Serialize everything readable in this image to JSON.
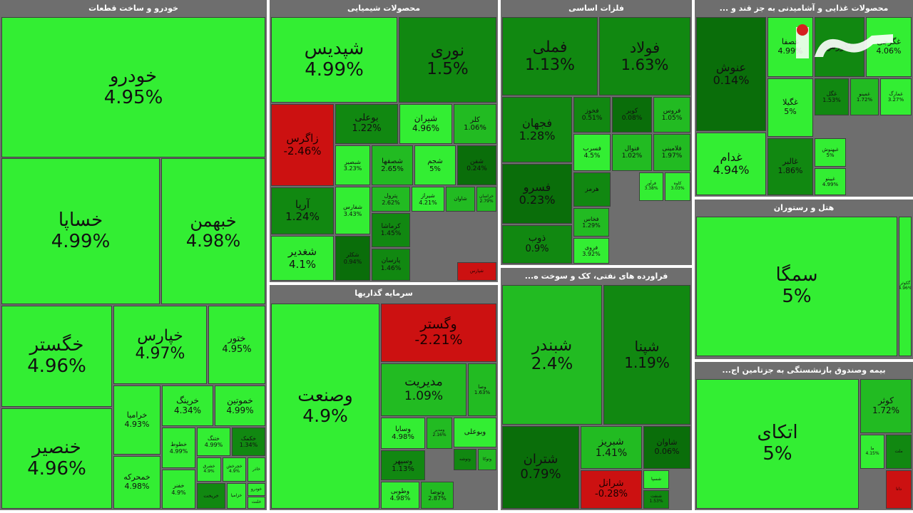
{
  "colors": {
    "bright": "#33ee33",
    "mid": "#22bb22",
    "dark": "#118811",
    "darker": "#0a6e0a",
    "red": "#cc1111",
    "header": "#6e6e6e"
  },
  "chart_data": {
    "type": "treemap",
    "panels": [
      {
        "title": "خودرو و ساخت قطعات",
        "tiles": [
          {
            "name": "خودرو",
            "value": "4.95%",
            "tone": "bright"
          },
          {
            "name": "خساپا",
            "value": "4.99%",
            "tone": "bright"
          },
          {
            "name": "خبهمن",
            "value": "4.98%",
            "tone": "bright"
          },
          {
            "name": "خگستر",
            "value": "4.96%",
            "tone": "bright"
          },
          {
            "name": "خپارس",
            "value": "4.97%",
            "tone": "bright"
          },
          {
            "name": "ختور",
            "value": "4.95%",
            "tone": "bright"
          },
          {
            "name": "خنصیر",
            "value": "4.96%",
            "tone": "bright"
          },
          {
            "name": "خرامیا",
            "value": "4.93%",
            "tone": "bright"
          },
          {
            "name": "خرینگ",
            "value": "4.34%",
            "tone": "bright"
          },
          {
            "name": "خموتین",
            "value": "4.99%",
            "tone": "bright"
          },
          {
            "name": "خمحرکه",
            "value": "4.98%",
            "tone": "bright"
          },
          {
            "name": "خطوط",
            "value": "4.99%",
            "tone": "bright"
          },
          {
            "name": "خفنر",
            "value": "4.9%",
            "tone": "bright"
          },
          {
            "name": "ختنگ",
            "value": "4.99%",
            "tone": "bright"
          },
          {
            "name": "خکمک",
            "value": "1.34%",
            "tone": "dark"
          },
          {
            "name": "خشرق",
            "value": "4.9%",
            "tone": "bright"
          },
          {
            "name": "خچرخش",
            "value": "4.9%",
            "tone": "bright"
          },
          {
            "name": "خاذر",
            "value": "",
            "tone": "bright"
          },
          {
            "name": "خریخت",
            "value": "",
            "tone": "dark"
          },
          {
            "name": "خزامیا",
            "value": "",
            "tone": "bright"
          },
          {
            "name": "خودرو",
            "value": "",
            "tone": "bright"
          },
          {
            "name": "خلنت",
            "value": "",
            "tone": "bright"
          }
        ]
      },
      {
        "title": "محصولات شیمیایی",
        "tiles": [
          {
            "name": "شپدیس",
            "value": "4.99%",
            "tone": "bright"
          },
          {
            "name": "نوری",
            "value": "1.5%",
            "tone": "dark"
          },
          {
            "name": "زاگرس",
            "value": "-2.46%",
            "tone": "red"
          },
          {
            "name": "بوعلی",
            "value": "1.22%",
            "tone": "dark"
          },
          {
            "name": "شیران",
            "value": "4.96%",
            "tone": "bright"
          },
          {
            "name": "کلر",
            "value": "1.06%",
            "tone": "mid"
          },
          {
            "name": "شصفها",
            "value": "2.65%",
            "tone": "mid"
          },
          {
            "name": "شجم",
            "value": "5%",
            "tone": "bright"
          },
          {
            "name": "شفن",
            "value": "0.24%",
            "tone": "darker"
          },
          {
            "name": "شبصیر",
            "value": "3.23%",
            "tone": "bright"
          },
          {
            "name": "آریا",
            "value": "1.24%",
            "tone": "dark"
          },
          {
            "name": "شفارس",
            "value": "3.43%",
            "tone": "bright"
          },
          {
            "name": "پترول",
            "value": "2.62%",
            "tone": "mid"
          },
          {
            "name": "شیراز",
            "value": "4.21%",
            "tone": "bright"
          },
          {
            "name": "شاوان",
            "value": "",
            "tone": "mid"
          },
          {
            "name": "خراسان",
            "value": "2.79%",
            "tone": "mid"
          },
          {
            "name": "شغدیر",
            "value": "4.1%",
            "tone": "bright"
          },
          {
            "name": "کرماشا",
            "value": "1.45%",
            "tone": "dark"
          },
          {
            "name": "شکلر",
            "value": "0.94%",
            "tone": "darker"
          },
          {
            "name": "پارسان",
            "value": "1.46%",
            "tone": "dark"
          },
          {
            "name": "شپارس",
            "value": "",
            "tone": "red"
          }
        ]
      },
      {
        "title": "فلزات اساسی",
        "tiles": [
          {
            "name": "فملی",
            "value": "1.13%",
            "tone": "dark"
          },
          {
            "name": "فولاد",
            "value": "1.63%",
            "tone": "dark"
          },
          {
            "name": "فجهان",
            "value": "1.28%",
            "tone": "dark"
          },
          {
            "name": "فخوز",
            "value": "0.51%",
            "tone": "dark"
          },
          {
            "name": "کویر",
            "value": "0.08%",
            "tone": "darker"
          },
          {
            "name": "فروس",
            "value": "1.05%",
            "tone": "mid"
          },
          {
            "name": "فسرب",
            "value": "4.5%",
            "tone": "bright"
          },
          {
            "name": "فنوال",
            "value": "1.02%",
            "tone": "mid"
          },
          {
            "name": "فلامینی",
            "value": "1.97%",
            "tone": "mid"
          },
          {
            "name": "فسرو",
            "value": "0.23%",
            "tone": "darker"
          },
          {
            "name": "ذوب",
            "value": "0.9%",
            "tone": "dark"
          },
          {
            "name": "هرمز",
            "value": "",
            "tone": "dark"
          },
          {
            "name": "فرآور",
            "value": "3.38%",
            "tone": "bright"
          },
          {
            "name": "کاوه",
            "value": "3.03%",
            "tone": "bright"
          },
          {
            "name": "فخاس",
            "value": "1.29%",
            "tone": "mid"
          },
          {
            "name": "فروی",
            "value": "3.92%",
            "tone": "bright"
          }
        ]
      },
      {
        "title": "محصولات غذایی و آشامیدنی به جز قند و ...",
        "tiles": [
          {
            "name": "عنوش",
            "value": "0.14%",
            "tone": "darker"
          },
          {
            "name": "غصفا",
            "value": "4.99%",
            "tone": "bright"
          },
          {
            "name": "غکورش",
            "value": "",
            "tone": "dark"
          },
          {
            "name": "غگرجی",
            "value": "4.06%",
            "tone": "bright"
          },
          {
            "name": "غگیلا",
            "value": "5%",
            "tone": "bright"
          },
          {
            "name": "غگل",
            "value": "1.53%",
            "tone": "dark"
          },
          {
            "name": "غمینو",
            "value": "1.72%",
            "tone": "mid"
          },
          {
            "name": "غمارگ",
            "value": "3.27%",
            "tone": "bright"
          },
          {
            "name": "غدام",
            "value": "4.94%",
            "tone": "bright"
          },
          {
            "name": "غالبر",
            "value": "1.86%",
            "tone": "dark"
          },
          {
            "name": "غبهنوش",
            "value": "5%",
            "tone": "bright"
          },
          {
            "name": "غپینو",
            "value": "4.99%",
            "tone": "bright"
          }
        ]
      },
      {
        "title": "سرمایه گذاریها",
        "tiles": [
          {
            "name": "وصنعت",
            "value": "4.9%",
            "tone": "bright"
          },
          {
            "name": "وگستر",
            "value": "-2.21%",
            "tone": "red"
          },
          {
            "name": "مدیریت",
            "value": "1.09%",
            "tone": "mid"
          },
          {
            "name": "وصا",
            "value": "1.63%",
            "tone": "mid"
          },
          {
            "name": "وسایا",
            "value": "4.98%",
            "tone": "bright"
          },
          {
            "name": "ومدیر",
            "value": "2.16%",
            "tone": "mid"
          },
          {
            "name": "وسپهر",
            "value": "1.13%",
            "tone": "dark"
          },
          {
            "name": "وبوعلی",
            "value": "",
            "tone": "bright"
          },
          {
            "name": "وتوشه",
            "value": "",
            "tone": "dark"
          },
          {
            "name": "وتوکا",
            "value": "",
            "tone": "mid"
          },
          {
            "name": "وطوبی",
            "value": "4.98%",
            "tone": "bright"
          },
          {
            "name": "وتوصا",
            "value": "2.87%",
            "tone": "mid"
          }
        ]
      },
      {
        "title": "فراورده های نفتی، کک و سوخت ه...",
        "tiles": [
          {
            "name": "شبندر",
            "value": "2.4%",
            "tone": "mid"
          },
          {
            "name": "شپنا",
            "value": "1.19%",
            "tone": "dark"
          },
          {
            "name": "شتران",
            "value": "0.79%",
            "tone": "darker"
          },
          {
            "name": "شبریز",
            "value": "1.41%",
            "tone": "mid"
          },
          {
            "name": "شاوان",
            "value": "0.06%",
            "tone": "darker"
          },
          {
            "name": "شرانل",
            "value": "-0.28%",
            "tone": "red"
          },
          {
            "name": "شسپا",
            "value": "",
            "tone": "bright"
          },
          {
            "name": "شنفت",
            "value": "1.53%",
            "tone": "dark"
          }
        ]
      },
      {
        "title": "هتل و رستوران",
        "tiles": [
          {
            "name": "سمگا",
            "value": "5%",
            "tone": "bright"
          },
          {
            "name": "گکوثر",
            "value": "4.96%",
            "tone": "bright"
          }
        ]
      },
      {
        "title": "بیمه وصندوق بازنشستگی به جزتامین اج...",
        "tiles": [
          {
            "name": "اتکای",
            "value": "5%",
            "tone": "bright"
          },
          {
            "name": "کوثر",
            "value": "1.72%",
            "tone": "mid"
          },
          {
            "name": "ما",
            "value": "4.15%",
            "tone": "bright"
          },
          {
            "name": "ملت",
            "value": "",
            "tone": "dark"
          },
          {
            "name": "دانا",
            "value": "",
            "tone": "red"
          }
        ]
      }
    ]
  }
}
